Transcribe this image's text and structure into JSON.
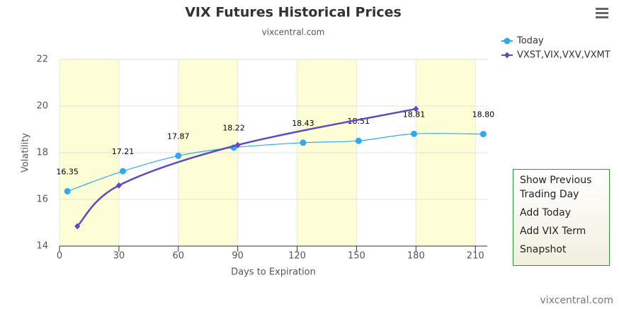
{
  "chart_data": {
    "type": "line",
    "title": "VIX Futures Historical Prices",
    "subtitle": "vixcentral.com",
    "x_label": "Days to Expiration",
    "y_label": "Volatility",
    "credits": "vixcentral.com",
    "xlim": [
      0,
      216
    ],
    "xticks": [
      0,
      30,
      60,
      90,
      120,
      150,
      180,
      210
    ],
    "ylim": [
      14,
      22
    ],
    "yticks": [
      14,
      16,
      18,
      20,
      22
    ],
    "grid": true,
    "plot_bands": [
      [
        0,
        30
      ],
      [
        60,
        90
      ],
      [
        120,
        150
      ],
      [
        180,
        210
      ]
    ],
    "band_color": "#fdfdd6",
    "series": [
      {
        "name": "Today",
        "color": "#2eaaf5",
        "marker": "circle",
        "x": [
          4,
          32,
          60,
          88,
          123,
          151,
          179,
          214
        ],
        "values": [
          16.35,
          17.21,
          17.87,
          18.22,
          18.43,
          18.51,
          18.81,
          18.8
        ],
        "value_labels": [
          "16.35",
          "17.21",
          "17.87",
          "18.22",
          "18.43",
          "18.51",
          "18.81",
          "18.80"
        ]
      },
      {
        "name": "VXST,VIX,VXV,VXMT",
        "color": "#5b4bc4",
        "marker": "diamond",
        "x": [
          9,
          30,
          90,
          180
        ],
        "values": [
          14.85,
          16.6,
          18.33,
          19.88
        ]
      }
    ],
    "buttons": [
      "Show Previous Trading Day",
      "Add Today",
      "Add VIX Term",
      "Snapshot"
    ]
  }
}
